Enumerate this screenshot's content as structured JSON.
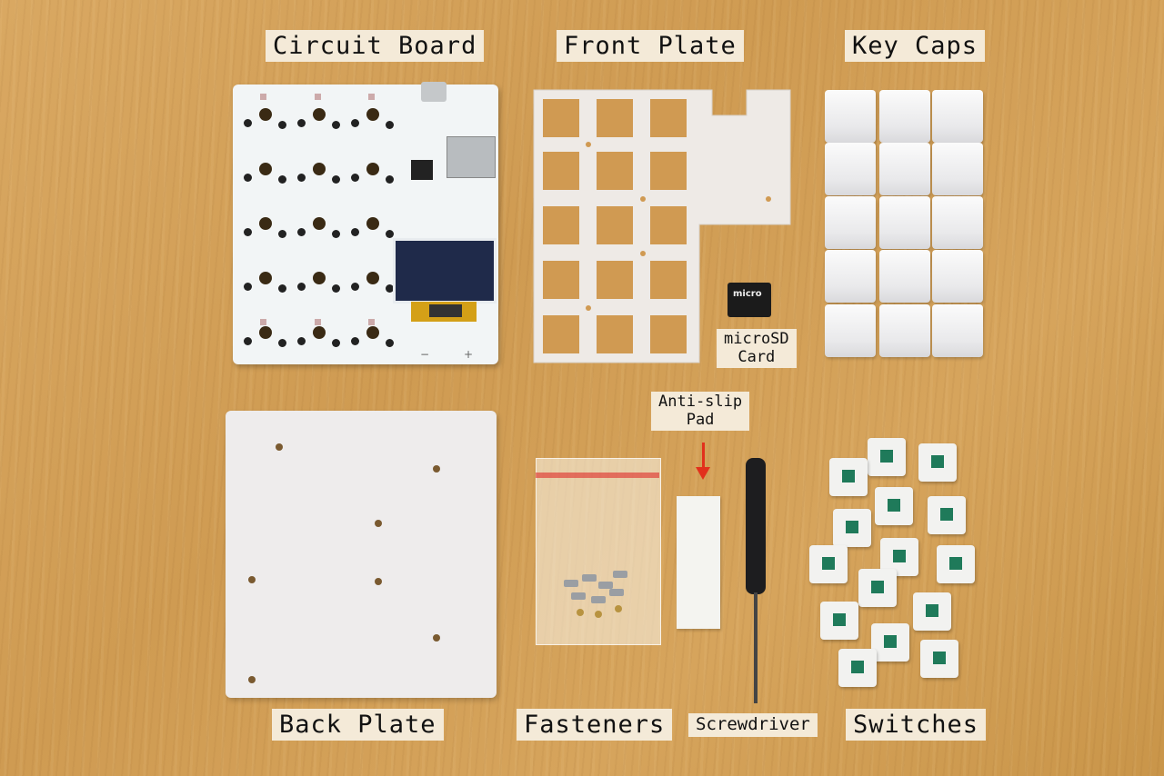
{
  "labels": {
    "circuit_board": "Circuit Board",
    "front_plate": "Front Plate",
    "key_caps": "Key Caps",
    "microsd_line1": "microSD",
    "microsd_line2": "Card",
    "anti_slip_line1": "Anti-slip",
    "anti_slip_line2": "Pad",
    "back_plate": "Back Plate",
    "fasteners": "Fasteners",
    "screwdriver": "Screwdriver",
    "switches": "Switches"
  },
  "card_text": "micro",
  "pcb_silkscreen": {
    "minus": "−",
    "plus": "+"
  },
  "colors": {
    "table": "#d6a45c",
    "arrow": "#e2301c",
    "label_bg": "#f4ead8",
    "switch_stem": "#1f7a5a"
  }
}
